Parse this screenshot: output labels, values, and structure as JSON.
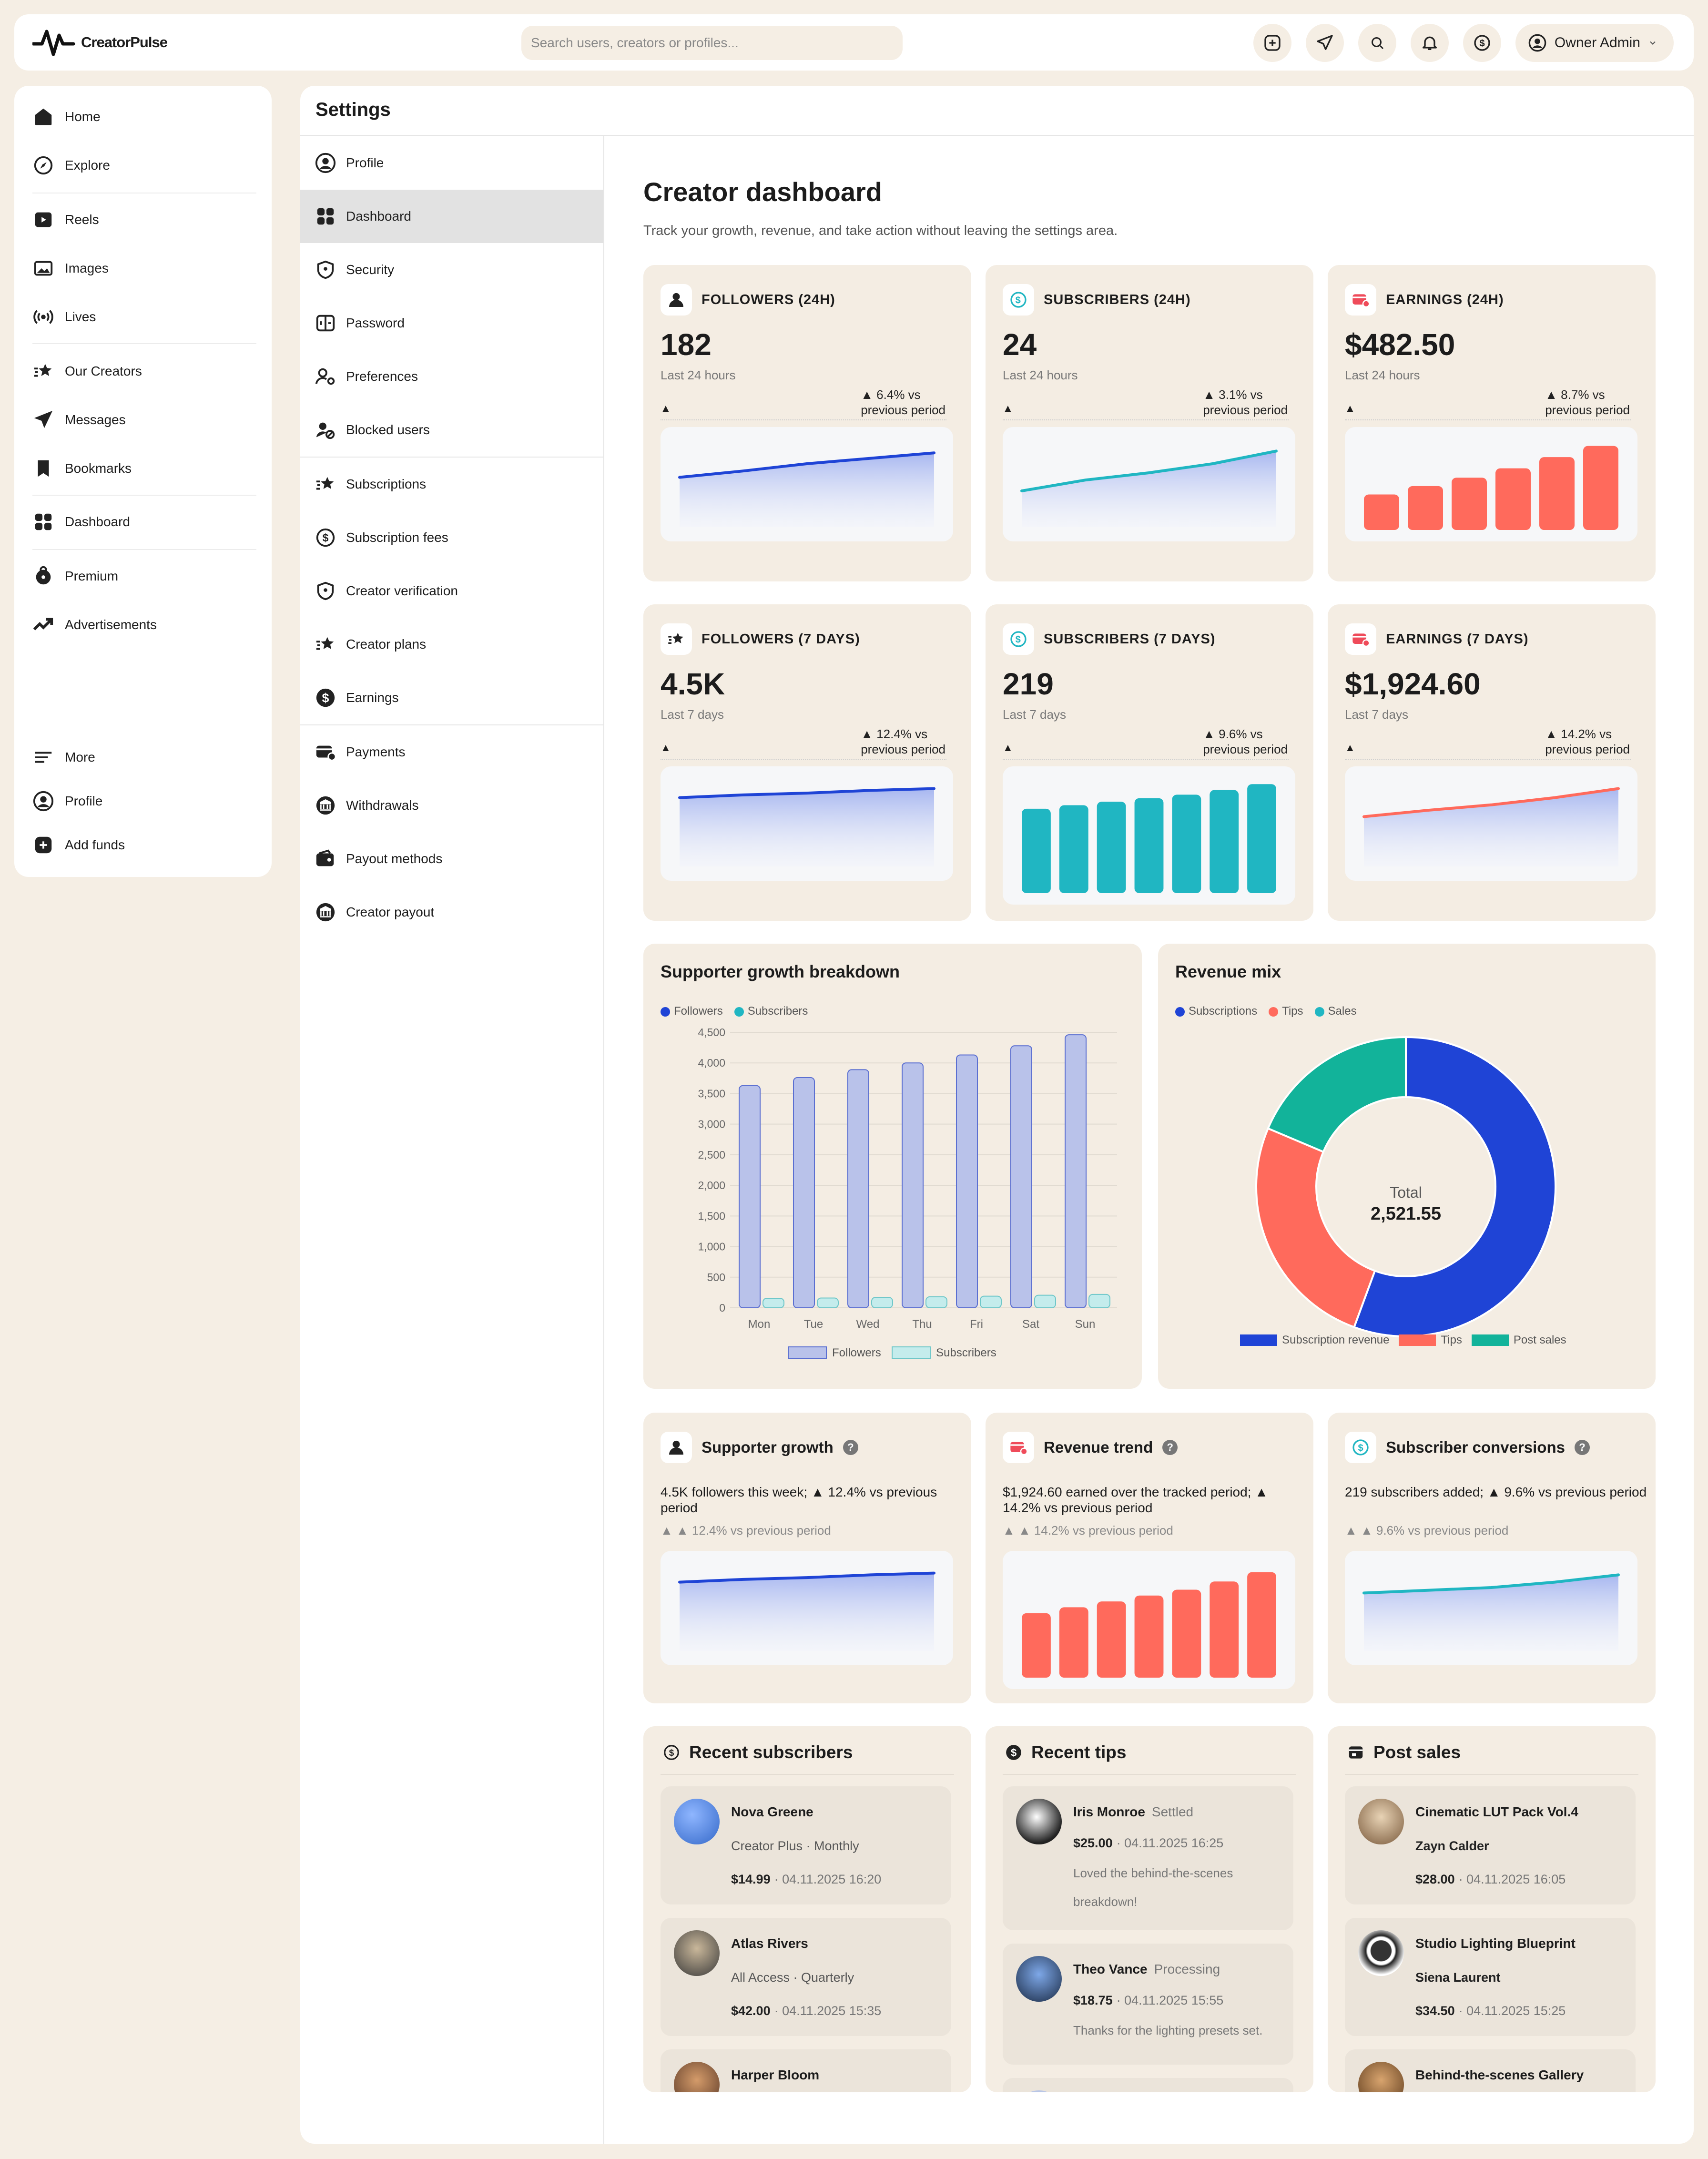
{
  "app": {
    "name": "CreatorPulse"
  },
  "search": {
    "placeholder": "Search users, creators or profiles..."
  },
  "topbar": {
    "user_label": "Owner Admin"
  },
  "leftnav": {
    "items": [
      "Home",
      "Explore",
      "Reels",
      "Images",
      "Lives",
      "Our Creators",
      "Messages",
      "Bookmarks",
      "Dashboard",
      "Premium",
      "Advertisements"
    ],
    "bottom": [
      "More",
      "Profile",
      "Add funds"
    ]
  },
  "settings": {
    "title": "Settings",
    "items": [
      "Profile",
      "Dashboard",
      "Security",
      "Password",
      "Preferences",
      "Blocked users",
      "Subscriptions",
      "Subscription fees",
      "Creator verification",
      "Creator plans",
      "Earnings",
      "Payments",
      "Withdrawals",
      "Payout methods",
      "Creator payout"
    ],
    "active": "Dashboard"
  },
  "dashboard": {
    "title": "Creator dashboard",
    "subtitle": "Track your growth, revenue, and take action without leaving the settings area."
  },
  "kpis": [
    {
      "label": "FOLLOWERS (24H)",
      "value": "182",
      "period": "Last 24 hours",
      "delta1": "▲ 6.4% vs",
      "delta2": "previous period",
      "chart": "line",
      "color": "#1f44d6",
      "points": [
        0.55,
        0.62,
        0.7,
        0.76,
        0.82
      ]
    },
    {
      "label": "SUBSCRIBERS (24H)",
      "value": "24",
      "period": "Last 24 hours",
      "delta1": "▲ 3.1% vs",
      "delta2": "previous period",
      "chart": "line",
      "color": "#20b6c2",
      "points": [
        0.4,
        0.52,
        0.6,
        0.7,
        0.84
      ]
    },
    {
      "label": "EARNINGS (24H)",
      "value": "$482.50",
      "period": "Last 24 hours",
      "delta1": "▲ 8.7% vs",
      "delta2": "previous period",
      "chart": "bar",
      "color": "#ff6a5c",
      "points": [
        0.38,
        0.47,
        0.56,
        0.66,
        0.78,
        0.9
      ]
    },
    {
      "label": "FOLLOWERS (7 DAYS)",
      "value": "4.5K",
      "period": "Last 7 days",
      "delta1": "▲ 12.4% vs",
      "delta2": "previous period",
      "chart": "line",
      "color": "#1f44d6",
      "points": [
        0.76,
        0.79,
        0.81,
        0.84,
        0.86
      ]
    },
    {
      "label": "SUBSCRIBERS (7 DAYS)",
      "value": "219",
      "period": "Last 7 days",
      "delta1": "▲ 9.6% vs",
      "delta2": "previous period",
      "chart": "bar",
      "color": "#20b6c2",
      "points": [
        0.72,
        0.75,
        0.78,
        0.81,
        0.84,
        0.88,
        0.93
      ]
    },
    {
      "label": "EARNINGS (7 DAYS)",
      "value": "$1,924.60",
      "period": "Last 7 days",
      "delta1": "▲ 14.2% vs",
      "delta2": "previous period",
      "chart": "line",
      "color": "#ff6a5c",
      "points": [
        0.55,
        0.62,
        0.68,
        0.76,
        0.86
      ]
    }
  ],
  "growth": {
    "title": "Supporter growth breakdown",
    "legend_top": [
      "Followers",
      "Subscribers"
    ],
    "legend_bottom": [
      "Followers",
      "Subscribers"
    ],
    "colors": {
      "followers": "#1f44d6",
      "subscribers": "#20b6c2"
    }
  },
  "revenue": {
    "title": "Revenue mix",
    "legend_top": [
      "Subscriptions",
      "Tips",
      "Sales"
    ],
    "legend_bottom": [
      "Subscription revenue",
      "Tips",
      "Post sales"
    ],
    "total_label": "Total",
    "total_value": "2,521.55",
    "colors": [
      "#1f44d6",
      "#ff6a5c",
      "#12b39a"
    ]
  },
  "chart_data": [
    {
      "type": "bar",
      "title": "Supporter growth breakdown",
      "categories": [
        "Mon",
        "Tue",
        "Wed",
        "Thu",
        "Fri",
        "Sat",
        "Sun"
      ],
      "series": [
        {
          "name": "Followers",
          "values": [
            3630,
            3760,
            3890,
            4000,
            4130,
            4280,
            4460
          ]
        },
        {
          "name": "Subscribers",
          "values": [
            150,
            160,
            170,
            180,
            190,
            205,
            219
          ]
        }
      ],
      "ylim": [
        0,
        4500
      ],
      "yticks": [
        "0",
        "500",
        "1,000",
        "1,500",
        "2,000",
        "2,500",
        "3,000",
        "3,500",
        "4,000",
        "4,500"
      ],
      "grid": true,
      "legend": "top-left"
    },
    {
      "type": "pie",
      "title": "Revenue mix",
      "categories": [
        "Subscription revenue",
        "Tips",
        "Post sales"
      ],
      "values": [
        1402.5,
        649.3,
        469.75
      ],
      "legend": "bottom"
    }
  ],
  "insights": [
    {
      "title": "Supporter growth",
      "desc": "4.5K followers this week; ▲ 12.4% vs previous period",
      "delta": "▲ ▲ 12.4% vs previous period",
      "chart": "line",
      "color": "#1f44d6",
      "points": [
        0.76,
        0.79,
        0.81,
        0.84,
        0.86
      ]
    },
    {
      "title": "Revenue trend",
      "desc": "$1,924.60 earned over the tracked period; ▲ 14.2% vs previous period",
      "delta": "▲ ▲ 14.2% vs previous period",
      "chart": "bar",
      "color": "#ff6a5c",
      "points": [
        0.55,
        0.6,
        0.65,
        0.7,
        0.75,
        0.82,
        0.9
      ]
    },
    {
      "title": "Subscriber conversions",
      "desc": "219 subscribers added; ▲ 9.6% vs previous period",
      "delta": "▲ ▲ 9.6% vs previous period",
      "chart": "line",
      "color": "#20b6c2",
      "points": [
        0.64,
        0.67,
        0.7,
        0.76,
        0.84
      ]
    }
  ],
  "recent_subscribers": {
    "title": "Recent subscribers",
    "items": [
      {
        "name": "Nova Greene",
        "plan": "Creator Plus · Monthly",
        "amount": "$14.99",
        "time": "· 04.11.2025 16:20"
      },
      {
        "name": "Atlas Rivers",
        "plan": "All Access · Quarterly",
        "amount": "$42.00",
        "time": "· 04.11.2025 15:35"
      },
      {
        "name": "Harper Bloom"
      }
    ]
  },
  "recent_tips": {
    "title": "Recent tips",
    "items": [
      {
        "name": "Iris Monroe",
        "status": "Settled",
        "amount": "$25.00",
        "time": "· 04.11.2025 16:25",
        "note": "Loved the behind-the-scenes breakdown!"
      },
      {
        "name": "Theo Vance",
        "status": "Processing",
        "amount": "$18.75",
        "time": "· 04.11.2025 15:55",
        "note": "Thanks for the lighting presets set."
      }
    ]
  },
  "post_sales": {
    "title": "Post sales",
    "items": [
      {
        "product": "Cinematic LUT Pack Vol.4",
        "buyer": "Zayn Calder",
        "amount": "$28.00",
        "time": "· 04.11.2025 16:05"
      },
      {
        "product": "Studio Lighting Blueprint",
        "buyer": "Siena Laurent",
        "amount": "$34.50",
        "time": "· 04.11.2025 15:25"
      },
      {
        "product": "Behind-the-scenes Gallery"
      }
    ]
  }
}
